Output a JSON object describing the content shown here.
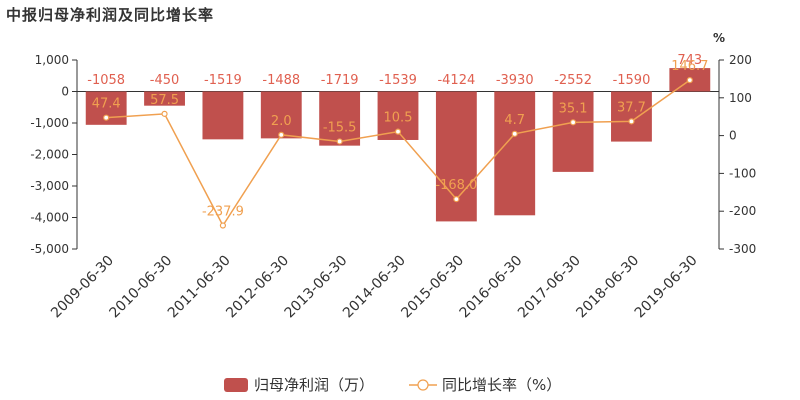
{
  "chart_data": {
    "type": "bar",
    "title": "中报归母净利润及同比增长率",
    "categories": [
      "2009-06-30",
      "2010-06-30",
      "2011-06-30",
      "2012-06-30",
      "2013-06-30",
      "2014-06-30",
      "2015-06-30",
      "2016-06-30",
      "2017-06-30",
      "2018-06-30",
      "2019-06-30"
    ],
    "series": [
      {
        "name": "归母净利润（万）",
        "type": "bar",
        "axis": "left",
        "values": [
          -1058,
          -450,
          -1519,
          -1488,
          -1719,
          -1539,
          -4124,
          -3930,
          -2552,
          -1590,
          743
        ],
        "labels": [
          "-1058",
          "-450",
          "-1519",
          "-1488",
          "-1719",
          "-1539",
          "-4124",
          "-3930",
          "-2552",
          "-1590",
          "743"
        ]
      },
      {
        "name": "同比增长率（%）",
        "type": "line",
        "axis": "right",
        "values": [
          47.4,
          57.5,
          -237.9,
          2.0,
          -15.5,
          10.5,
          -168.0,
          4.7,
          35.1,
          37.7,
          146.7
        ],
        "labels": [
          "47.4",
          "57.5",
          "-237.9",
          "2.0",
          "-15.5",
          "10.5",
          "-168.0",
          "4.7",
          "35.1",
          "37.7",
          "146.7"
        ]
      }
    ],
    "left_axis": {
      "ylim": [
        -5000,
        1000
      ],
      "ticks": [
        1000,
        0,
        -1000,
        -2000,
        -3000,
        -4000,
        -5000
      ],
      "tick_labels": [
        "1,000",
        "0",
        "-1,000",
        "-2,000",
        "-3,000",
        "-4,000",
        "-5,000"
      ]
    },
    "right_axis": {
      "unit": "%",
      "ylim": [
        -300,
        200
      ],
      "ticks": [
        200,
        100,
        0,
        -100,
        -200,
        -300
      ],
      "tick_labels": [
        "200",
        "100",
        "0",
        "-100",
        "-200",
        "-300"
      ]
    },
    "legend": {
      "position": "bottom-center",
      "items": [
        "归母净利润（万）",
        "同比增长率（%）"
      ]
    },
    "colors": {
      "bar": "#c0504d",
      "line": "#f0a050",
      "label": "#e06050",
      "text": "#333333"
    },
    "grid": false
  }
}
